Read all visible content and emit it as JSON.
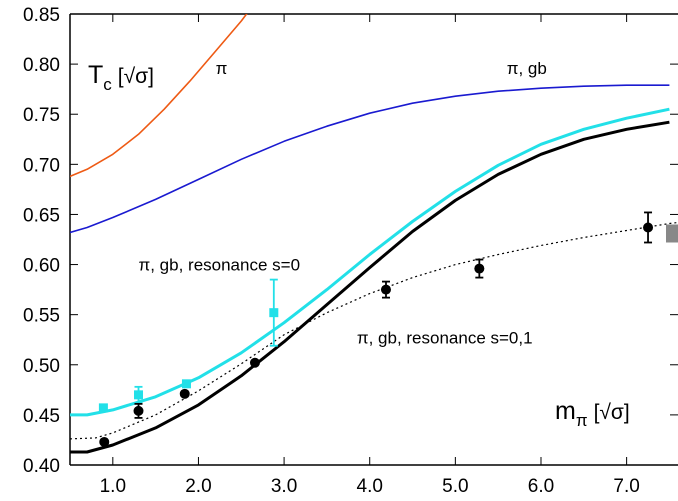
{
  "chart_data": {
    "type": "line",
    "title": "",
    "xlim": [
      0.5,
      7.6
    ],
    "ylim": [
      0.4,
      0.85
    ],
    "x_ticks": [
      1.0,
      2.0,
      3.0,
      4.0,
      5.0,
      6.0,
      7.0
    ],
    "x_tick_labels": [
      "1.0",
      "2.0",
      "3.0",
      "4.0",
      "5.0",
      "6.0",
      "7.0"
    ],
    "y_ticks": [
      0.4,
      0.45,
      0.5,
      0.55,
      0.6,
      0.65,
      0.7,
      0.75,
      0.8,
      0.85
    ],
    "y_tick_labels": [
      "0.40",
      "0.45",
      "0.50",
      "0.55",
      "0.60",
      "0.65",
      "0.70",
      "0.75",
      "0.80",
      "0.85"
    ],
    "ylabel": {
      "main": "T",
      "sub": "c",
      "unit": "[√σ]"
    },
    "xlabel": {
      "main": "m",
      "sub": "π",
      "unit": "[√σ]"
    },
    "grid": false,
    "series": [
      {
        "name": "π",
        "style": "line",
        "color": "#ee5a14",
        "width": 1.6,
        "points": [
          [
            0.5,
            0.688
          ],
          [
            0.7,
            0.695
          ],
          [
            1.0,
            0.71
          ],
          [
            1.3,
            0.73
          ],
          [
            1.6,
            0.755
          ],
          [
            1.9,
            0.783
          ],
          [
            2.2,
            0.813
          ],
          [
            2.5,
            0.843
          ],
          [
            2.65,
            0.86
          ]
        ]
      },
      {
        "name": "π, gb",
        "style": "line",
        "color": "#1a1ad0",
        "width": 1.6,
        "points": [
          [
            0.5,
            0.632
          ],
          [
            0.7,
            0.637
          ],
          [
            1.0,
            0.647
          ],
          [
            1.5,
            0.665
          ],
          [
            2.0,
            0.685
          ],
          [
            2.5,
            0.705
          ],
          [
            3.0,
            0.723
          ],
          [
            3.5,
            0.738
          ],
          [
            4.0,
            0.751
          ],
          [
            4.5,
            0.761
          ],
          [
            5.0,
            0.768
          ],
          [
            5.5,
            0.773
          ],
          [
            6.0,
            0.776
          ],
          [
            6.5,
            0.778
          ],
          [
            7.0,
            0.779
          ],
          [
            7.5,
            0.779
          ]
        ]
      },
      {
        "name": "π, gb, resonance s=0",
        "style": "line",
        "color": "#22e0e8",
        "width": 3,
        "points": [
          [
            0.5,
            0.45
          ],
          [
            0.7,
            0.45
          ],
          [
            1.0,
            0.455
          ],
          [
            1.5,
            0.468
          ],
          [
            2.0,
            0.487
          ],
          [
            2.5,
            0.512
          ],
          [
            3.0,
            0.542
          ],
          [
            3.5,
            0.575
          ],
          [
            4.0,
            0.61
          ],
          [
            4.5,
            0.643
          ],
          [
            5.0,
            0.673
          ],
          [
            5.5,
            0.699
          ],
          [
            6.0,
            0.72
          ],
          [
            6.5,
            0.735
          ],
          [
            7.0,
            0.746
          ],
          [
            7.5,
            0.755
          ]
        ]
      },
      {
        "name": "π, gb, resonance s=0,1",
        "style": "line",
        "color": "#000000",
        "width": 3,
        "points": [
          [
            0.5,
            0.413
          ],
          [
            0.7,
            0.413
          ],
          [
            1.0,
            0.42
          ],
          [
            1.5,
            0.437
          ],
          [
            2.0,
            0.46
          ],
          [
            2.5,
            0.489
          ],
          [
            3.0,
            0.523
          ],
          [
            3.5,
            0.56
          ],
          [
            4.0,
            0.597
          ],
          [
            4.5,
            0.633
          ],
          [
            5.0,
            0.664
          ],
          [
            5.5,
            0.69
          ],
          [
            6.0,
            0.71
          ],
          [
            6.5,
            0.725
          ],
          [
            7.0,
            0.735
          ],
          [
            7.5,
            0.742
          ]
        ]
      },
      {
        "name": "",
        "style": "dotted",
        "color": "#000000",
        "width": 1.2,
        "points": [
          [
            0.5,
            0.426
          ],
          [
            0.8,
            0.427
          ],
          [
            1.0,
            0.432
          ],
          [
            1.5,
            0.45
          ],
          [
            2.0,
            0.474
          ],
          [
            2.5,
            0.501
          ],
          [
            3.0,
            0.53
          ],
          [
            3.5,
            0.552
          ],
          [
            4.0,
            0.571
          ],
          [
            4.5,
            0.587
          ],
          [
            5.0,
            0.6
          ],
          [
            5.5,
            0.61
          ],
          [
            6.0,
            0.619
          ],
          [
            6.5,
            0.627
          ],
          [
            7.0,
            0.634
          ],
          [
            7.5,
            0.641
          ],
          [
            7.6,
            0.642
          ]
        ]
      }
    ],
    "cyan_points": [
      {
        "x": 0.89,
        "y": 0.457,
        "err": 0.0
      },
      {
        "x": 1.3,
        "y": 0.47,
        "err": 0.008
      },
      {
        "x": 1.86,
        "y": 0.481,
        "err": 0.0
      },
      {
        "x": 2.88,
        "y": 0.552,
        "err": 0.033
      }
    ],
    "black_points": [
      {
        "x": 0.9,
        "y": 0.423,
        "err": 0.0
      },
      {
        "x": 1.3,
        "y": 0.454,
        "err": 0.007
      },
      {
        "x": 1.84,
        "y": 0.471,
        "err": 0.0
      },
      {
        "x": 2.66,
        "y": 0.502,
        "err": 0.0
      },
      {
        "x": 4.19,
        "y": 0.575,
        "err": 0.008
      },
      {
        "x": 5.28,
        "y": 0.596,
        "err": 0.009
      },
      {
        "x": 7.25,
        "y": 0.637,
        "err": 0.015
      }
    ],
    "grey_box": {
      "x": 7.6,
      "y": 0.631,
      "color": "#888888"
    },
    "annotations": [
      {
        "text": "π",
        "x": 2.2,
        "y": 0.79
      },
      {
        "text": "π, gb",
        "x": 5.6,
        "y": 0.79
      },
      {
        "text": "π, gb, resonance s=0",
        "x": 1.3,
        "y": 0.594
      },
      {
        "text": "π, gb, resonance s=0,1",
        "x": 3.85,
        "y": 0.521
      }
    ]
  }
}
